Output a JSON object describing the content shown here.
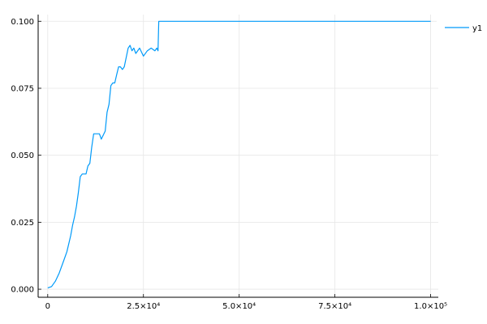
{
  "chart_data": {
    "type": "line",
    "title": "",
    "xlabel": "",
    "ylabel": "",
    "xlim": [
      -2500,
      102000
    ],
    "ylim": [
      -0.003,
      0.1025
    ],
    "grid": true,
    "legend_position": "top-right",
    "x_ticks": [
      {
        "value": 0,
        "label": "0"
      },
      {
        "value": 25000,
        "label": "2.5×10⁴"
      },
      {
        "value": 50000,
        "label": "5.0×10⁴"
      },
      {
        "value": 75000,
        "label": "7.5×10⁴"
      },
      {
        "value": 100000,
        "label": "1.0×10⁵"
      }
    ],
    "y_ticks": [
      {
        "value": 0.0,
        "label": "0.000"
      },
      {
        "value": 0.025,
        "label": "0.025"
      },
      {
        "value": 0.05,
        "label": "0.050"
      },
      {
        "value": 0.075,
        "label": "0.075"
      },
      {
        "value": 0.1,
        "label": "0.100"
      }
    ],
    "series": [
      {
        "name": "y1",
        "color": "#009af9",
        "x": [
          0,
          1000,
          2000,
          3000,
          4000,
          5000,
          6000,
          6500,
          7000,
          7500,
          8000,
          8500,
          9000,
          9500,
          10000,
          10500,
          11000,
          11500,
          12000,
          12500,
          13000,
          13500,
          14000,
          15000,
          15500,
          16000,
          16500,
          17000,
          17500,
          18000,
          18500,
          19000,
          19500,
          20000,
          21000,
          21500,
          22000,
          22500,
          23000,
          24000,
          25000,
          26000,
          27000,
          28000,
          28500,
          28800,
          29000,
          40000,
          60000,
          80000,
          100000
        ],
        "y": [
          0.0005,
          0.001,
          0.003,
          0.006,
          0.01,
          0.014,
          0.02,
          0.024,
          0.027,
          0.031,
          0.036,
          0.042,
          0.043,
          0.043,
          0.043,
          0.046,
          0.047,
          0.053,
          0.058,
          0.058,
          0.058,
          0.058,
          0.056,
          0.059,
          0.066,
          0.069,
          0.076,
          0.077,
          0.077,
          0.08,
          0.083,
          0.083,
          0.082,
          0.083,
          0.09,
          0.091,
          0.089,
          0.09,
          0.088,
          0.09,
          0.087,
          0.089,
          0.09,
          0.089,
          0.09,
          0.089,
          0.1,
          0.1,
          0.1,
          0.1,
          0.1
        ]
      }
    ]
  }
}
